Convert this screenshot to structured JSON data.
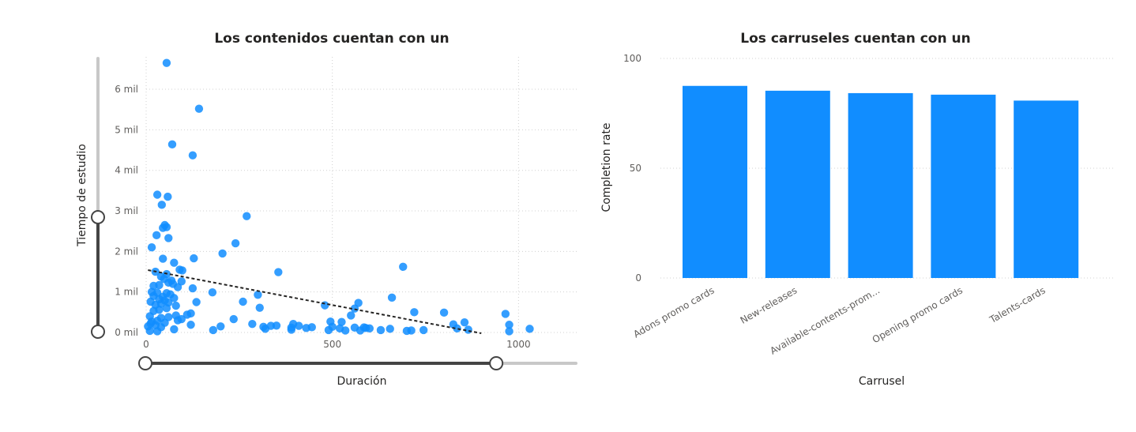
{
  "chart_data": [
    {
      "type": "scatter",
      "title": "Los contenidos cuentan con un",
      "xlabel": "Duración",
      "ylabel": "Tiempo de estudio",
      "xlim": [
        0,
        1135
      ],
      "ylim": [
        0,
        6800
      ],
      "x_ticks": [
        {
          "value": 0,
          "label": "0"
        },
        {
          "value": 500,
          "label": "500"
        },
        {
          "value": 1000,
          "label": "1000"
        }
      ],
      "y_ticks": [
        {
          "value": 0,
          "label": "0 mil"
        },
        {
          "value": 1000,
          "label": "1 mil"
        },
        {
          "value": 2000,
          "label": "2 mil"
        },
        {
          "value": 3000,
          "label": "3 mil"
        },
        {
          "value": 4000,
          "label": "4 mil"
        },
        {
          "value": 5000,
          "label": "5 mil"
        },
        {
          "value": 6000,
          "label": "6 mil"
        }
      ],
      "grid": true,
      "trendline": {
        "x": [
          5,
          900
        ],
        "y": [
          1540,
          -20
        ]
      },
      "zoom_sliders": {
        "x_range": [
          0,
          925
        ],
        "y_range": [
          0,
          2850
        ]
      },
      "points": [
        {
          "x": 55,
          "y": 6650
        },
        {
          "x": 142,
          "y": 5520
        },
        {
          "x": 70,
          "y": 4640
        },
        {
          "x": 125,
          "y": 4370
        },
        {
          "x": 30,
          "y": 3400
        },
        {
          "x": 58,
          "y": 3350
        },
        {
          "x": 42,
          "y": 3150
        },
        {
          "x": 270,
          "y": 2870
        },
        {
          "x": 50,
          "y": 2650
        },
        {
          "x": 55,
          "y": 2600
        },
        {
          "x": 45,
          "y": 2580
        },
        {
          "x": 28,
          "y": 2400
        },
        {
          "x": 60,
          "y": 2330
        },
        {
          "x": 240,
          "y": 2200
        },
        {
          "x": 15,
          "y": 2100
        },
        {
          "x": 205,
          "y": 1950
        },
        {
          "x": 45,
          "y": 1820
        },
        {
          "x": 128,
          "y": 1830
        },
        {
          "x": 75,
          "y": 1720
        },
        {
          "x": 690,
          "y": 1620
        },
        {
          "x": 90,
          "y": 1550
        },
        {
          "x": 97,
          "y": 1530
        },
        {
          "x": 355,
          "y": 1490
        },
        {
          "x": 25,
          "y": 1500
        },
        {
          "x": 55,
          "y": 1440
        },
        {
          "x": 40,
          "y": 1380
        },
        {
          "x": 48,
          "y": 1320
        },
        {
          "x": 68,
          "y": 1280
        },
        {
          "x": 95,
          "y": 1260
        },
        {
          "x": 60,
          "y": 1230
        },
        {
          "x": 72,
          "y": 1200
        },
        {
          "x": 35,
          "y": 1170
        },
        {
          "x": 20,
          "y": 1150
        },
        {
          "x": 85,
          "y": 1120
        },
        {
          "x": 125,
          "y": 1090
        },
        {
          "x": 15,
          "y": 1000
        },
        {
          "x": 30,
          "y": 980
        },
        {
          "x": 178,
          "y": 990
        },
        {
          "x": 55,
          "y": 970
        },
        {
          "x": 65,
          "y": 940
        },
        {
          "x": 300,
          "y": 930
        },
        {
          "x": 20,
          "y": 900
        },
        {
          "x": 45,
          "y": 880
        },
        {
          "x": 75,
          "y": 850
        },
        {
          "x": 660,
          "y": 860
        },
        {
          "x": 35,
          "y": 820
        },
        {
          "x": 50,
          "y": 790
        },
        {
          "x": 12,
          "y": 760
        },
        {
          "x": 260,
          "y": 760
        },
        {
          "x": 135,
          "y": 750
        },
        {
          "x": 60,
          "y": 740
        },
        {
          "x": 570,
          "y": 730
        },
        {
          "x": 40,
          "y": 710
        },
        {
          "x": 25,
          "y": 680
        },
        {
          "x": 480,
          "y": 670
        },
        {
          "x": 80,
          "y": 660
        },
        {
          "x": 305,
          "y": 610
        },
        {
          "x": 55,
          "y": 600
        },
        {
          "x": 560,
          "y": 590
        },
        {
          "x": 35,
          "y": 560
        },
        {
          "x": 20,
          "y": 530
        },
        {
          "x": 720,
          "y": 500
        },
        {
          "x": 800,
          "y": 490
        },
        {
          "x": 965,
          "y": 460
        },
        {
          "x": 120,
          "y": 470
        },
        {
          "x": 110,
          "y": 440
        },
        {
          "x": 80,
          "y": 420
        },
        {
          "x": 10,
          "y": 400
        },
        {
          "x": 60,
          "y": 380
        },
        {
          "x": 40,
          "y": 360
        },
        {
          "x": 550,
          "y": 420
        },
        {
          "x": 95,
          "y": 330
        },
        {
          "x": 235,
          "y": 330
        },
        {
          "x": 85,
          "y": 300
        },
        {
          "x": 30,
          "y": 290
        },
        {
          "x": 15,
          "y": 270
        },
        {
          "x": 495,
          "y": 270
        },
        {
          "x": 525,
          "y": 260
        },
        {
          "x": 855,
          "y": 250
        },
        {
          "x": 50,
          "y": 240
        },
        {
          "x": 395,
          "y": 210
        },
        {
          "x": 285,
          "y": 210
        },
        {
          "x": 975,
          "y": 190
        },
        {
          "x": 825,
          "y": 200
        },
        {
          "x": 120,
          "y": 190
        },
        {
          "x": 25,
          "y": 180
        },
        {
          "x": 350,
          "y": 170
        },
        {
          "x": 335,
          "y": 165
        },
        {
          "x": 410,
          "y": 165
        },
        {
          "x": 200,
          "y": 150
        },
        {
          "x": 315,
          "y": 140
        },
        {
          "x": 500,
          "y": 140
        },
        {
          "x": 445,
          "y": 130
        },
        {
          "x": 560,
          "y": 120
        },
        {
          "x": 585,
          "y": 125
        },
        {
          "x": 40,
          "y": 130
        },
        {
          "x": 390,
          "y": 120
        },
        {
          "x": 430,
          "y": 110
        },
        {
          "x": 590,
          "y": 110
        },
        {
          "x": 600,
          "y": 100
        },
        {
          "x": 520,
          "y": 100
        },
        {
          "x": 320,
          "y": 90
        },
        {
          "x": 655,
          "y": 90
        },
        {
          "x": 835,
          "y": 100
        },
        {
          "x": 1030,
          "y": 90
        },
        {
          "x": 75,
          "y": 80
        },
        {
          "x": 180,
          "y": 60
        },
        {
          "x": 390,
          "y": 70
        },
        {
          "x": 490,
          "y": 60
        },
        {
          "x": 535,
          "y": 50
        },
        {
          "x": 575,
          "y": 50
        },
        {
          "x": 630,
          "y": 60
        },
        {
          "x": 700,
          "y": 40
        },
        {
          "x": 712,
          "y": 50
        },
        {
          "x": 745,
          "y": 60
        },
        {
          "x": 865,
          "y": 70
        },
        {
          "x": 975,
          "y": 30
        },
        {
          "x": 10,
          "y": 40
        },
        {
          "x": 30,
          "y": 30
        },
        {
          "x": 5,
          "y": 150
        },
        {
          "x": 12,
          "y": 220
        }
      ]
    },
    {
      "type": "bar",
      "title": "Los carruseles cuentan con un",
      "xlabel": "Carrusel",
      "ylabel": "Completion rate",
      "ylim": [
        0,
        100
      ],
      "y_ticks": [
        {
          "value": 0,
          "label": "0"
        },
        {
          "value": 50,
          "label": "50"
        },
        {
          "value": 100,
          "label": "100"
        }
      ],
      "grid": true,
      "categories": [
        "Adons promo cards",
        "New-releases",
        "Available-contents-prom...",
        "Opening promo cards",
        "Talents-cards"
      ],
      "values": [
        87.5,
        85.3,
        84.2,
        83.5,
        80.8
      ],
      "bar_color": "#118dff"
    }
  ]
}
